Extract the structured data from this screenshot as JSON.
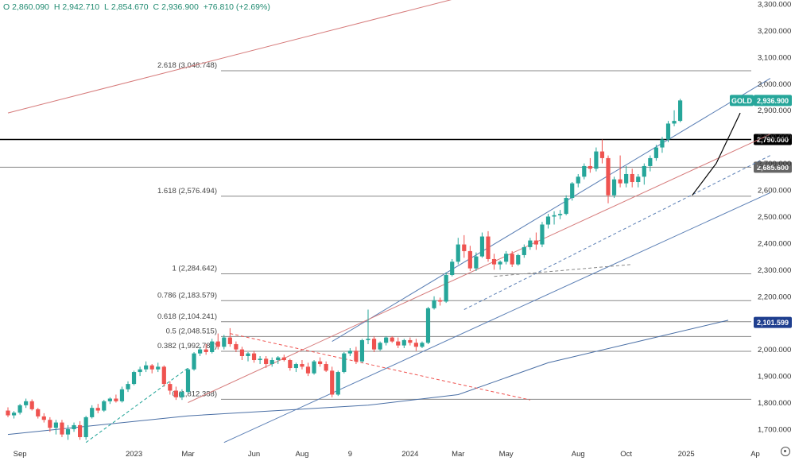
{
  "ohlc": {
    "open_label": "O",
    "open": "2,860.090",
    "high_label": "H",
    "high": "2,942.710",
    "low_label": "L",
    "low": "2,854.670",
    "close_label": "C",
    "close": "2,936.900",
    "change": "+76.810 (+2.69%)"
  },
  "colors": {
    "up": "#26a69a",
    "down": "#ef5350",
    "channel": "#5b7fb5",
    "mid_channel": "#d67b7b",
    "fib_line": "#888888",
    "ma_line": "#4a6fa5",
    "black": "#000000",
    "tag_blue": "#1f3f8f"
  },
  "chart_data": {
    "type": "candlestick",
    "title": "GOLD",
    "symbol": "GOLD",
    "y_axis": {
      "min": 1640,
      "max": 3300,
      "ticks": [
        "1,700.000",
        "1,800.000",
        "1,900.000",
        "2,000.000",
        "2,100.000",
        "2,200.000",
        "2,300.000",
        "2,400.000",
        "2,500.000",
        "2,600.000",
        "2,700.000",
        "2,800.000",
        "2,900.000",
        "3,000.000",
        "3,100.000",
        "3,200.000",
        "3,300.000"
      ],
      "tick_values": [
        1700,
        1800,
        1900,
        2000,
        2100,
        2200,
        2300,
        2400,
        2500,
        2600,
        2700,
        2800,
        2900,
        3000,
        3100,
        3200,
        3300
      ]
    },
    "x_axis": {
      "labels": [
        "Sep",
        "2023",
        "Mar",
        "Jun",
        "Aug",
        "9",
        "2024",
        "Mar",
        "May",
        "Aug",
        "Oct",
        "2025",
        "Ap"
      ],
      "label_index": [
        2,
        21,
        30,
        41,
        49,
        57,
        67,
        75,
        83,
        95,
        103,
        113,
        125
      ]
    },
    "candles": [
      [
        1770,
        1782,
        1745,
        1752
      ],
      [
        1752,
        1768,
        1740,
        1762
      ],
      [
        1762,
        1795,
        1755,
        1790
      ],
      [
        1790,
        1815,
        1780,
        1805
      ],
      [
        1805,
        1812,
        1770,
        1775
      ],
      [
        1775,
        1780,
        1740,
        1748
      ],
      [
        1748,
        1760,
        1725,
        1735
      ],
      [
        1735,
        1745,
        1690,
        1705
      ],
      [
        1705,
        1735,
        1680,
        1725
      ],
      [
        1725,
        1735,
        1670,
        1680
      ],
      [
        1680,
        1715,
        1660,
        1700
      ],
      [
        1700,
        1725,
        1690,
        1715
      ],
      [
        1715,
        1730,
        1660,
        1670
      ],
      [
        1670,
        1750,
        1660,
        1745
      ],
      [
        1745,
        1790,
        1740,
        1780
      ],
      [
        1780,
        1795,
        1760,
        1770
      ],
      [
        1770,
        1810,
        1765,
        1805
      ],
      [
        1805,
        1820,
        1795,
        1815
      ],
      [
        1815,
        1830,
        1800,
        1805
      ],
      [
        1805,
        1860,
        1800,
        1850
      ],
      [
        1850,
        1880,
        1840,
        1870
      ],
      [
        1870,
        1920,
        1865,
        1915
      ],
      [
        1915,
        1935,
        1900,
        1925
      ],
      [
        1925,
        1955,
        1915,
        1940
      ],
      [
        1940,
        1945,
        1910,
        1925
      ],
      [
        1925,
        1950,
        1915,
        1935
      ],
      [
        1935,
        1940,
        1860,
        1870
      ],
      [
        1870,
        1880,
        1830,
        1845
      ],
      [
        1845,
        1860,
        1810,
        1820
      ],
      [
        1820,
        1850,
        1810,
        1840
      ],
      [
        1840,
        1930,
        1835,
        1925
      ],
      [
        1925,
        1990,
        1920,
        1985
      ],
      [
        1985,
        2010,
        1975,
        2000
      ],
      [
        2000,
        2020,
        1980,
        1990
      ],
      [
        1990,
        2040,
        1985,
        2030
      ],
      [
        2030,
        2060,
        2000,
        2010
      ],
      [
        2010,
        2055,
        2000,
        2045
      ],
      [
        2045,
        2080,
        2010,
        2020
      ],
      [
        2020,
        2030,
        1990,
        2000
      ],
      [
        2000,
        2010,
        1960,
        1975
      ],
      [
        1975,
        1990,
        1955,
        1985
      ],
      [
        1985,
        1995,
        1950,
        1960
      ],
      [
        1960,
        1975,
        1945,
        1965
      ],
      [
        1965,
        1975,
        1930,
        1945
      ],
      [
        1945,
        1970,
        1935,
        1960
      ],
      [
        1960,
        1975,
        1945,
        1970
      ],
      [
        1970,
        1980,
        1955,
        1960
      ],
      [
        1960,
        1965,
        1920,
        1930
      ],
      [
        1930,
        1950,
        1915,
        1945
      ],
      [
        1945,
        1960,
        1925,
        1935
      ],
      [
        1935,
        1950,
        1900,
        1910
      ],
      [
        1910,
        1960,
        1905,
        1955
      ],
      [
        1955,
        1970,
        1935,
        1945
      ],
      [
        1945,
        1955,
        1915,
        1920
      ],
      [
        1920,
        1935,
        1820,
        1830
      ],
      [
        1830,
        1920,
        1825,
        1915
      ],
      [
        1915,
        1990,
        1910,
        1985
      ],
      [
        1985,
        2005,
        1975,
        1995
      ],
      [
        1995,
        2010,
        1945,
        1955
      ],
      [
        1955,
        2040,
        1950,
        2035
      ],
      [
        2035,
        2150,
        2020,
        2040
      ],
      [
        2040,
        2050,
        1990,
        2000
      ],
      [
        2000,
        2030,
        1995,
        2025
      ],
      [
        2025,
        2050,
        2015,
        2045
      ],
      [
        2045,
        2050,
        2025,
        2030
      ],
      [
        2030,
        2045,
        2005,
        2015
      ],
      [
        2015,
        2040,
        2005,
        2035
      ],
      [
        2035,
        2045,
        2015,
        2025
      ],
      [
        2025,
        2040,
        1995,
        2010
      ],
      [
        2010,
        2030,
        2005,
        2025
      ],
      [
        2025,
        2160,
        2020,
        2155
      ],
      [
        2155,
        2200,
        2150,
        2185
      ],
      [
        2185,
        2195,
        2165,
        2180
      ],
      [
        2180,
        2290,
        2175,
        2280
      ],
      [
        2280,
        2340,
        2275,
        2330
      ],
      [
        2330,
        2420,
        2320,
        2395
      ],
      [
        2395,
        2430,
        2345,
        2370
      ],
      [
        2370,
        2390,
        2295,
        2305
      ],
      [
        2305,
        2365,
        2295,
        2350
      ],
      [
        2350,
        2440,
        2345,
        2425
      ],
      [
        2425,
        2445,
        2330,
        2340
      ],
      [
        2340,
        2360,
        2300,
        2320
      ],
      [
        2320,
        2335,
        2300,
        2330
      ],
      [
        2330,
        2370,
        2320,
        2360
      ],
      [
        2360,
        2370,
        2310,
        2320
      ],
      [
        2320,
        2360,
        2315,
        2355
      ],
      [
        2355,
        2395,
        2345,
        2385
      ],
      [
        2385,
        2420,
        2375,
        2410
      ],
      [
        2410,
        2440,
        2375,
        2395
      ],
      [
        2395,
        2480,
        2385,
        2470
      ],
      [
        2470,
        2510,
        2455,
        2500
      ],
      [
        2500,
        2520,
        2470,
        2505
      ],
      [
        2505,
        2525,
        2490,
        2510
      ],
      [
        2510,
        2580,
        2505,
        2570
      ],
      [
        2570,
        2630,
        2560,
        2625
      ],
      [
        2625,
        2660,
        2610,
        2650
      ],
      [
        2650,
        2700,
        2640,
        2690
      ],
      [
        2690,
        2720,
        2665,
        2680
      ],
      [
        2680,
        2760,
        2670,
        2745
      ],
      [
        2745,
        2790,
        2700,
        2720
      ],
      [
        2720,
        2730,
        2550,
        2580
      ],
      [
        2580,
        2650,
        2570,
        2640
      ],
      [
        2640,
        2730,
        2610,
        2625
      ],
      [
        2625,
        2690,
        2610,
        2660
      ],
      [
        2660,
        2680,
        2610,
        2630
      ],
      [
        2630,
        2660,
        2610,
        2650
      ],
      [
        2650,
        2700,
        2620,
        2690
      ],
      [
        2690,
        2730,
        2670,
        2720
      ],
      [
        2720,
        2770,
        2710,
        2760
      ],
      [
        2760,
        2800,
        2740,
        2790
      ],
      [
        2790,
        2860,
        2780,
        2850
      ],
      [
        2850,
        2900,
        2840,
        2860
      ],
      [
        2860,
        2943,
        2855,
        2937
      ]
    ],
    "fib_levels": [
      {
        "label": "0 (1,812.388)",
        "value": 1812.388
      },
      {
        "label": "0.382 (1,992.783)",
        "value": 1992.783
      },
      {
        "label": "0.5 (2,048.515)",
        "value": 2048.515
      },
      {
        "label": "0.618 (2,104.241)",
        "value": 2104.241
      },
      {
        "label": "0.786 (2,183.579)",
        "value": 2183.579
      },
      {
        "label": "1 (2,284.642)",
        "value": 2284.642
      },
      {
        "label": "1.618 (2,576.494)",
        "value": 2576.494
      },
      {
        "label": "2.618 (3,048.748)",
        "value": 3048.748
      }
    ],
    "horizontal_levels": [
      {
        "label": "2,790.000",
        "value": 2790.0,
        "style": "black"
      },
      {
        "label": "2,685.600",
        "value": 2685.6,
        "style": "gray"
      }
    ],
    "price_tags": [
      {
        "symbol": "GOLD",
        "label": "2,936.900",
        "value": 2936.9,
        "color": "up"
      },
      {
        "label": "2,101.599",
        "value": 2101.599,
        "color": "tag_blue"
      }
    ],
    "channel_lines": [
      {
        "name": "upper-channel",
        "points": [
          [
            54,
            2030
          ],
          [
            127,
            3020
          ]
        ],
        "color": "channel"
      },
      {
        "name": "mid-channel",
        "points": [
          [
            30,
            1800
          ],
          [
            127,
            2810
          ]
        ],
        "color": "mid_channel"
      },
      {
        "name": "lower-channel",
        "points": [
          [
            36,
            1650
          ],
          [
            127,
            2590
          ]
        ],
        "color": "channel"
      },
      {
        "name": "top-channel",
        "points": [
          [
            0,
            2890
          ],
          [
            78,
            3340
          ]
        ],
        "color": "mid_channel"
      },
      {
        "name": "moving-average",
        "points": [
          [
            0,
            1680
          ],
          [
            30,
            1750
          ],
          [
            60,
            1790
          ],
          [
            75,
            1830
          ],
          [
            90,
            1950
          ],
          [
            105,
            2030
          ],
          [
            120,
            2110
          ]
        ],
        "color": "ma_line"
      }
    ],
    "dashed_lines": [
      {
        "name": "dash-lower-1",
        "points": [
          [
            13,
            1650
          ],
          [
            30,
            1930
          ]
        ],
        "color": "up"
      },
      {
        "name": "dash-down",
        "points": [
          [
            37,
            2060
          ],
          [
            87,
            1810
          ]
        ],
        "color": "down"
      },
      {
        "name": "dash-lower-2",
        "points": [
          [
            76,
            2150
          ],
          [
            127,
            2730
          ]
        ],
        "color": "channel"
      },
      {
        "name": "dash-flat",
        "points": [
          [
            81,
            2275
          ],
          [
            104,
            2320
          ]
        ],
        "color": "fib_line"
      }
    ],
    "trend_curve": {
      "name": "short-trend",
      "points": [
        [
          114,
          2580
        ],
        [
          118,
          2700
        ],
        [
          122,
          2890
        ]
      ]
    }
  }
}
